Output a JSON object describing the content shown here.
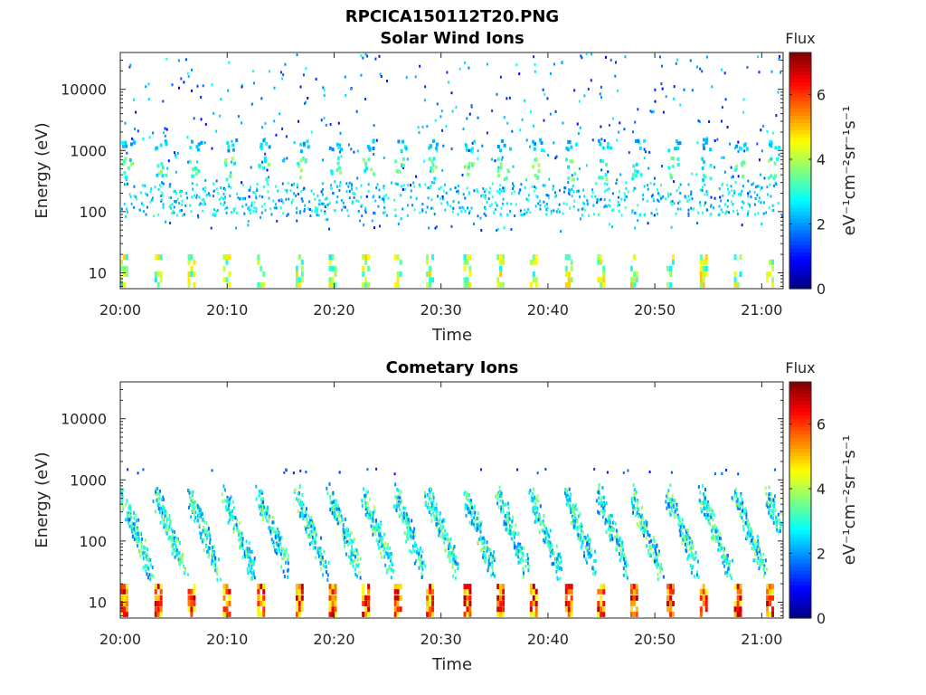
{
  "figure": {
    "title": "RPCICA150112T20.PNG"
  },
  "chart_data": [
    {
      "type": "heatmap",
      "title": "Solar Wind Ions",
      "xlabel": "Time",
      "ylabel": "Energy (eV)",
      "x_ticks": [
        "20:00",
        "20:10",
        "20:20",
        "20:30",
        "20:40",
        "20:50",
        "21:00"
      ],
      "xlim": [
        "20:00",
        "21:02"
      ],
      "y_scale": "log",
      "y_ticks": [
        10,
        100,
        1000,
        10000
      ],
      "y_tick_labels": [
        "10",
        "100",
        "1000",
        "10000"
      ],
      "ylim": [
        5.5,
        40000
      ],
      "colorbar": {
        "label": "Flux",
        "unit_label": "eV⁻¹cm⁻²sr⁻¹s⁻¹",
        "range": [
          0,
          7.3
        ],
        "ticks": [
          0,
          2,
          4,
          6
        ],
        "colormap": "jet"
      },
      "low_energy_band_minutes": [
        0,
        3.2,
        6.3,
        9.6,
        12.8,
        16.4,
        19.5,
        22.6,
        25.6,
        28.6,
        32.1,
        35.2,
        38.3,
        41.6,
        44.6,
        47.7,
        51.1,
        54.2,
        57.4,
        60.4
      ],
      "pattern": "sparse flux events between ~50 eV and ~40000 eV, stronger near 100-700 eV; periodic bands near 6-20 eV with values ~3-5"
    },
    {
      "type": "heatmap",
      "title": "Cometary Ions",
      "xlabel": "Time",
      "ylabel": "Energy (eV)",
      "x_ticks": [
        "20:00",
        "20:10",
        "20:20",
        "20:30",
        "20:40",
        "20:50",
        "21:00"
      ],
      "xlim": [
        "20:00",
        "21:02"
      ],
      "y_scale": "log",
      "y_ticks": [
        10,
        100,
        1000,
        10000
      ],
      "y_tick_labels": [
        "10",
        "100",
        "1000",
        "10000"
      ],
      "ylim": [
        5.5,
        40000
      ],
      "colorbar": {
        "label": "Flux",
        "unit_label": "eV⁻¹cm⁻²sr⁻¹s⁻¹",
        "range": [
          0,
          7.3
        ],
        "ticks": [
          0,
          2,
          4,
          6
        ],
        "colormap": "jet"
      },
      "low_energy_band_minutes": [
        0,
        3.2,
        6.3,
        9.6,
        12.8,
        16.4,
        19.5,
        22.6,
        25.6,
        28.6,
        32.1,
        35.2,
        38.3,
        41.6,
        44.6,
        47.7,
        51.1,
        54.2,
        57.4,
        60.4
      ],
      "pattern": "dense dispersed flux between ~30 eV and ~600 eV (values ~2-4); strong periodic bands near 6-20 eV with values ~5-7"
    }
  ]
}
